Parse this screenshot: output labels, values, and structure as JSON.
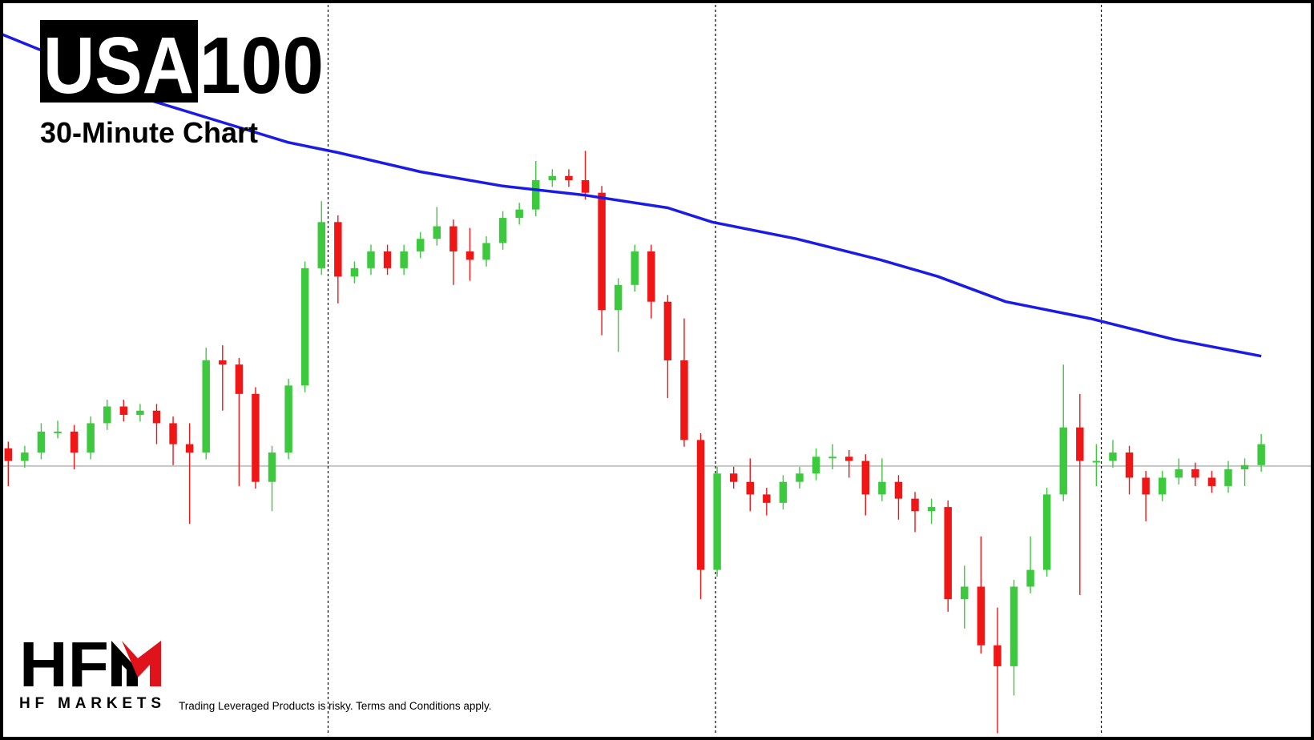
{
  "header": {
    "symbol_box": "USA",
    "symbol_rest": "100",
    "subtitle": "30-Minute Chart"
  },
  "logo": {
    "mark": "HF",
    "name": "HF MARKETS"
  },
  "disclaimer": "Trading Leveraged Products is risky. Terms and Conditions apply.",
  "chart_data": {
    "type": "candlestick",
    "up_color": "#3dc93d",
    "down_color": "#f01616",
    "xlim": [
      -0.5,
      79.2
    ],
    "ylim": [
      -3,
      880
    ],
    "open": [
      345,
      330,
      340,
      365,
      365,
      340,
      375,
      395,
      385,
      390,
      375,
      350,
      340,
      450,
      445,
      410,
      305,
      340,
      420,
      560,
      615,
      550,
      560,
      580,
      560,
      580,
      595,
      610,
      580,
      570,
      590,
      620,
      630,
      665,
      670,
      665,
      650,
      510,
      540,
      580,
      520,
      450,
      355,
      200,
      315,
      305,
      290,
      280,
      305,
      315,
      335,
      335,
      330,
      290,
      305,
      285,
      270,
      275,
      165,
      180,
      110,
      85,
      180,
      200,
      290,
      370,
      330,
      330,
      340,
      310,
      290,
      310,
      320,
      310,
      300,
      320,
      325
    ],
    "high": [
      353,
      348,
      375,
      378,
      373,
      383,
      403,
      403,
      398,
      398,
      383,
      375,
      465,
      468,
      453,
      418,
      348,
      428,
      568,
      640,
      623,
      568,
      588,
      588,
      588,
      603,
      633,
      618,
      608,
      598,
      628,
      638,
      688,
      678,
      678,
      700,
      658,
      548,
      588,
      588,
      528,
      500,
      363,
      323,
      323,
      333,
      298,
      313,
      323,
      345,
      350,
      343,
      338,
      333,
      313,
      293,
      285,
      283,
      205,
      240,
      155,
      188,
      240,
      298,
      445,
      410,
      350,
      355,
      348,
      318,
      318,
      333,
      328,
      318,
      330,
      333,
      362
    ],
    "low": [
      300,
      322,
      332,
      357,
      320,
      332,
      367,
      377,
      377,
      350,
      325,
      255,
      332,
      390,
      300,
      297,
      270,
      332,
      412,
      552,
      518,
      542,
      552,
      552,
      552,
      572,
      587,
      540,
      545,
      562,
      582,
      612,
      622,
      657,
      657,
      642,
      480,
      460,
      532,
      500,
      405,
      347,
      165,
      192,
      297,
      270,
      265,
      272,
      297,
      307,
      320,
      310,
      265,
      282,
      260,
      245,
      255,
      150,
      130,
      100,
      5,
      50,
      172,
      192,
      282,
      170,
      300,
      322,
      290,
      258,
      282,
      302,
      300,
      292,
      292,
      300,
      317
    ],
    "close": [
      330,
      340,
      365,
      365,
      340,
      375,
      395,
      385,
      390,
      375,
      350,
      340,
      450,
      445,
      410,
      305,
      340,
      420,
      560,
      615,
      550,
      560,
      580,
      560,
      580,
      595,
      610,
      580,
      570,
      590,
      620,
      630,
      665,
      670,
      665,
      650,
      510,
      540,
      580,
      520,
      450,
      355,
      200,
      315,
      305,
      290,
      280,
      305,
      315,
      335,
      335,
      330,
      290,
      305,
      285,
      270,
      275,
      165,
      180,
      110,
      85,
      180,
      200,
      290,
      370,
      330,
      330,
      340,
      310,
      290,
      310,
      320,
      310,
      300,
      320,
      325,
      350
    ],
    "ma": {
      "color": "#1b1be8",
      "x": [
        -0.5,
        2,
        7,
        12,
        17,
        20,
        25,
        30,
        35,
        40,
        42.7,
        47.8,
        52.9,
        56.4,
        60.5,
        65.6,
        70.7,
        76
      ],
      "values": [
        840,
        820,
        770,
        740,
        710,
        698,
        675,
        658,
        647,
        632,
        615,
        595,
        570,
        550,
        520,
        500,
        475,
        455
      ]
    },
    "hline": 324,
    "vlines": [
      19.4,
      42.9,
      66.3
    ]
  }
}
